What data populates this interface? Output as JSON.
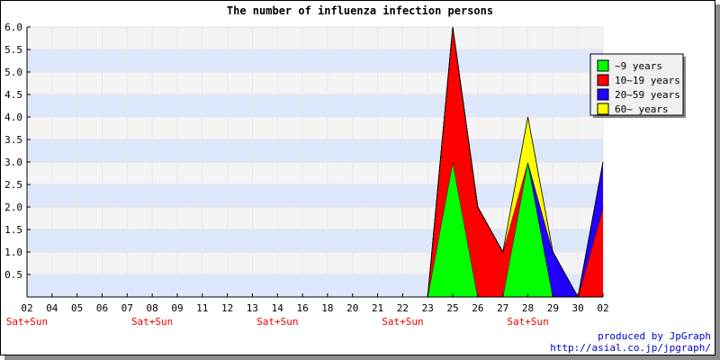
{
  "chart_data": {
    "type": "area",
    "stacked": true,
    "title": "The number of influenza infection persons",
    "xlabel": "",
    "ylabel": "",
    "ylim": [
      0,
      6.0
    ],
    "y_ticks": [
      "0.5",
      "1.0",
      "1.5",
      "2.0",
      "2.5",
      "3.0",
      "3.5",
      "4.0",
      "4.5",
      "5.0",
      "5.5",
      "6.0"
    ],
    "grid": true,
    "background_bands": [
      "#dde7fb",
      "#f4f4f4"
    ],
    "x_labels": [
      "02",
      "04",
      "05",
      "06",
      "07",
      "08",
      "09",
      "11",
      "12",
      "13",
      "14",
      "16",
      "18",
      "20",
      "21",
      "22",
      "23",
      "25",
      "26",
      "27",
      "28",
      "29",
      "30",
      "02"
    ],
    "weekend_marker": "Sat+Sun",
    "weekend_indices": [
      0,
      5,
      10,
      15,
      20
    ],
    "legend_position": "right",
    "series": [
      {
        "name": "~9 years",
        "color": "#00ff00",
        "values": [
          0,
          0,
          0,
          0,
          0,
          0,
          0,
          0,
          0,
          0,
          0,
          0,
          0,
          0,
          0,
          0,
          0,
          3,
          0,
          0,
          3,
          0,
          0,
          0
        ]
      },
      {
        "name": "10~19 years",
        "color": "#ff0000",
        "values": [
          0,
          0,
          0,
          0,
          0,
          0,
          0,
          0,
          0,
          0,
          0,
          0,
          0,
          0,
          0,
          0,
          0,
          3,
          2,
          1,
          0,
          0,
          0,
          2
        ]
      },
      {
        "name": "20~59 years",
        "color": "#2200ff",
        "values": [
          0,
          0,
          0,
          0,
          0,
          0,
          0,
          0,
          0,
          0,
          0,
          0,
          0,
          0,
          0,
          0,
          0,
          0,
          0,
          0,
          0,
          1,
          0,
          1
        ]
      },
      {
        "name": "60~ years",
        "color": "#ffff00",
        "values": [
          0,
          0,
          0,
          0,
          0,
          0,
          0,
          0,
          0,
          0,
          0,
          0,
          0,
          0,
          0,
          0,
          0,
          0,
          0,
          0,
          1,
          0,
          0,
          0
        ]
      }
    ]
  },
  "footer": {
    "line1": "produced by JpGraph",
    "line2": "http://asial.co.jp/jpgraph/"
  }
}
